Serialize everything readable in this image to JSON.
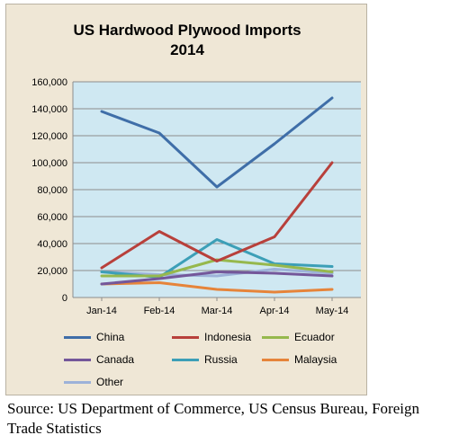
{
  "chart_data": {
    "type": "line",
    "title": "US Hardwood Plywood Imports",
    "subtitle": "2014",
    "categories": [
      "Jan-14",
      "Feb-14",
      "Mar-14",
      "Apr-14",
      "May-14"
    ],
    "ylim": [
      0,
      160000
    ],
    "yticks": [
      "0",
      "20,000",
      "40,000",
      "60,000",
      "80,000",
      "100,000",
      "120,000",
      "140,000",
      "160,000"
    ],
    "grid": true,
    "legend_position": "bottom",
    "series": [
      {
        "name": "China",
        "color": "#3f6ea8",
        "values": [
          138000,
          122000,
          82000,
          114000,
          148000
        ]
      },
      {
        "name": "Indonesia",
        "color": "#b8403b",
        "values": [
          22000,
          49000,
          27000,
          45000,
          100000
        ]
      },
      {
        "name": "Ecuador",
        "color": "#96b84d",
        "values": [
          16000,
          16000,
          28000,
          24000,
          19000
        ]
      },
      {
        "name": "Canada",
        "color": "#74579a",
        "values": [
          10000,
          14000,
          19000,
          18000,
          16000
        ]
      },
      {
        "name": "Russia",
        "color": "#3c9fb7",
        "values": [
          19000,
          15000,
          43000,
          25000,
          23000
        ]
      },
      {
        "name": "Malaysia",
        "color": "#e6843a",
        "values": [
          10000,
          11000,
          6000,
          4000,
          6000
        ]
      },
      {
        "name": "Other",
        "color": "#9db2d9",
        "values": [
          19000,
          17000,
          16000,
          21000,
          18000
        ]
      }
    ]
  },
  "source": {
    "text": "Source: US Department of Commerce, US Census Bureau, Foreign Trade Statistics"
  },
  "colors": {
    "frame_background": "#efe7d6",
    "plot_background": "#cfe8f2",
    "gridline": "#8c8c8c"
  }
}
